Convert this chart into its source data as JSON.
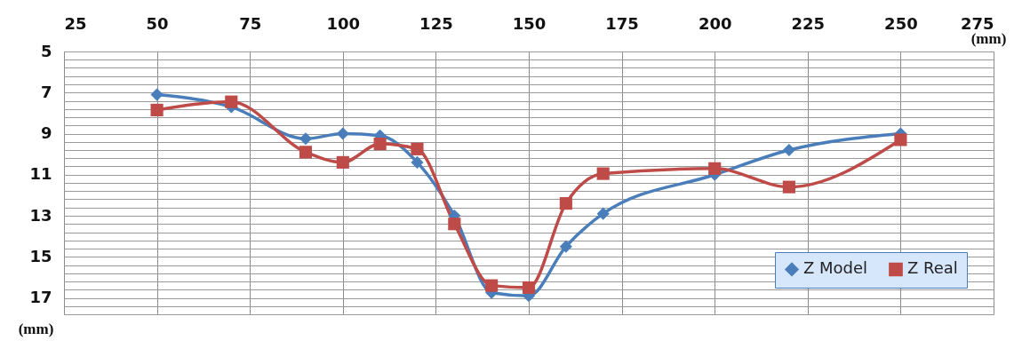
{
  "chart_data": {
    "type": "line",
    "xlabel": "(mm)",
    "ylabel": "(mm)",
    "xlim": [
      25,
      275
    ],
    "xticks": [
      25,
      50,
      75,
      100,
      125,
      150,
      175,
      200,
      225,
      250,
      275
    ],
    "ylim": [
      17.8,
      5
    ],
    "yticks": [
      5,
      {
        "value": 5.4,
        "label": null
      },
      {
        "value": 5.8,
        "label": null
      },
      {
        "value": 6.2,
        "label": null
      },
      {
        "value": 6.6,
        "label": null
      },
      7,
      {
        "value": 7.4,
        "label": null
      },
      {
        "value": 7.8,
        "label": null
      },
      {
        "value": 8.2,
        "label": null
      },
      {
        "value": 8.6,
        "label": null
      },
      9,
      {
        "value": 9.4,
        "label": null
      },
      {
        "value": 9.8,
        "label": null
      },
      {
        "value": 10.2,
        "label": null
      },
      {
        "value": 10.6,
        "label": null
      },
      11,
      {
        "value": 11.4,
        "label": null
      },
      {
        "value": 11.8,
        "label": null
      },
      {
        "value": 12.2,
        "label": null
      },
      {
        "value": 12.6,
        "label": null
      },
      13,
      {
        "value": 13.4,
        "label": null
      },
      {
        "value": 13.8,
        "label": null
      },
      {
        "value": 14.2,
        "label": null
      },
      {
        "value": 14.6,
        "label": null
      },
      15,
      {
        "value": 15.4,
        "label": null
      },
      {
        "value": 15.8,
        "label": null
      },
      {
        "value": 16.2,
        "label": null
      },
      {
        "value": 16.6,
        "label": null
      },
      17,
      {
        "value": 17.4,
        "label": null
      },
      {
        "value": 17.8,
        "label": null
      }
    ],
    "x": [
      50,
      70,
      90,
      100,
      110,
      120,
      130,
      140,
      150,
      160,
      170,
      200,
      220,
      250
    ],
    "series": [
      {
        "name": "Z Model",
        "color": "#4a7ebb",
        "marker": "diamond",
        "values": [
          7.1,
          7.7,
          9.25,
          9.0,
          9.1,
          10.4,
          13.0,
          16.75,
          16.9,
          14.5,
          12.9,
          11.0,
          9.8,
          9.0
        ]
      },
      {
        "name": "Z Real",
        "color": "#be4b48",
        "marker": "square",
        "values": [
          7.85,
          7.45,
          9.9,
          10.4,
          9.5,
          9.75,
          13.4,
          16.4,
          16.5,
          12.4,
          10.95,
          10.7,
          11.6,
          9.3
        ]
      }
    ],
    "grid": true,
    "legend": "bottom right",
    "line_style": "solid"
  }
}
